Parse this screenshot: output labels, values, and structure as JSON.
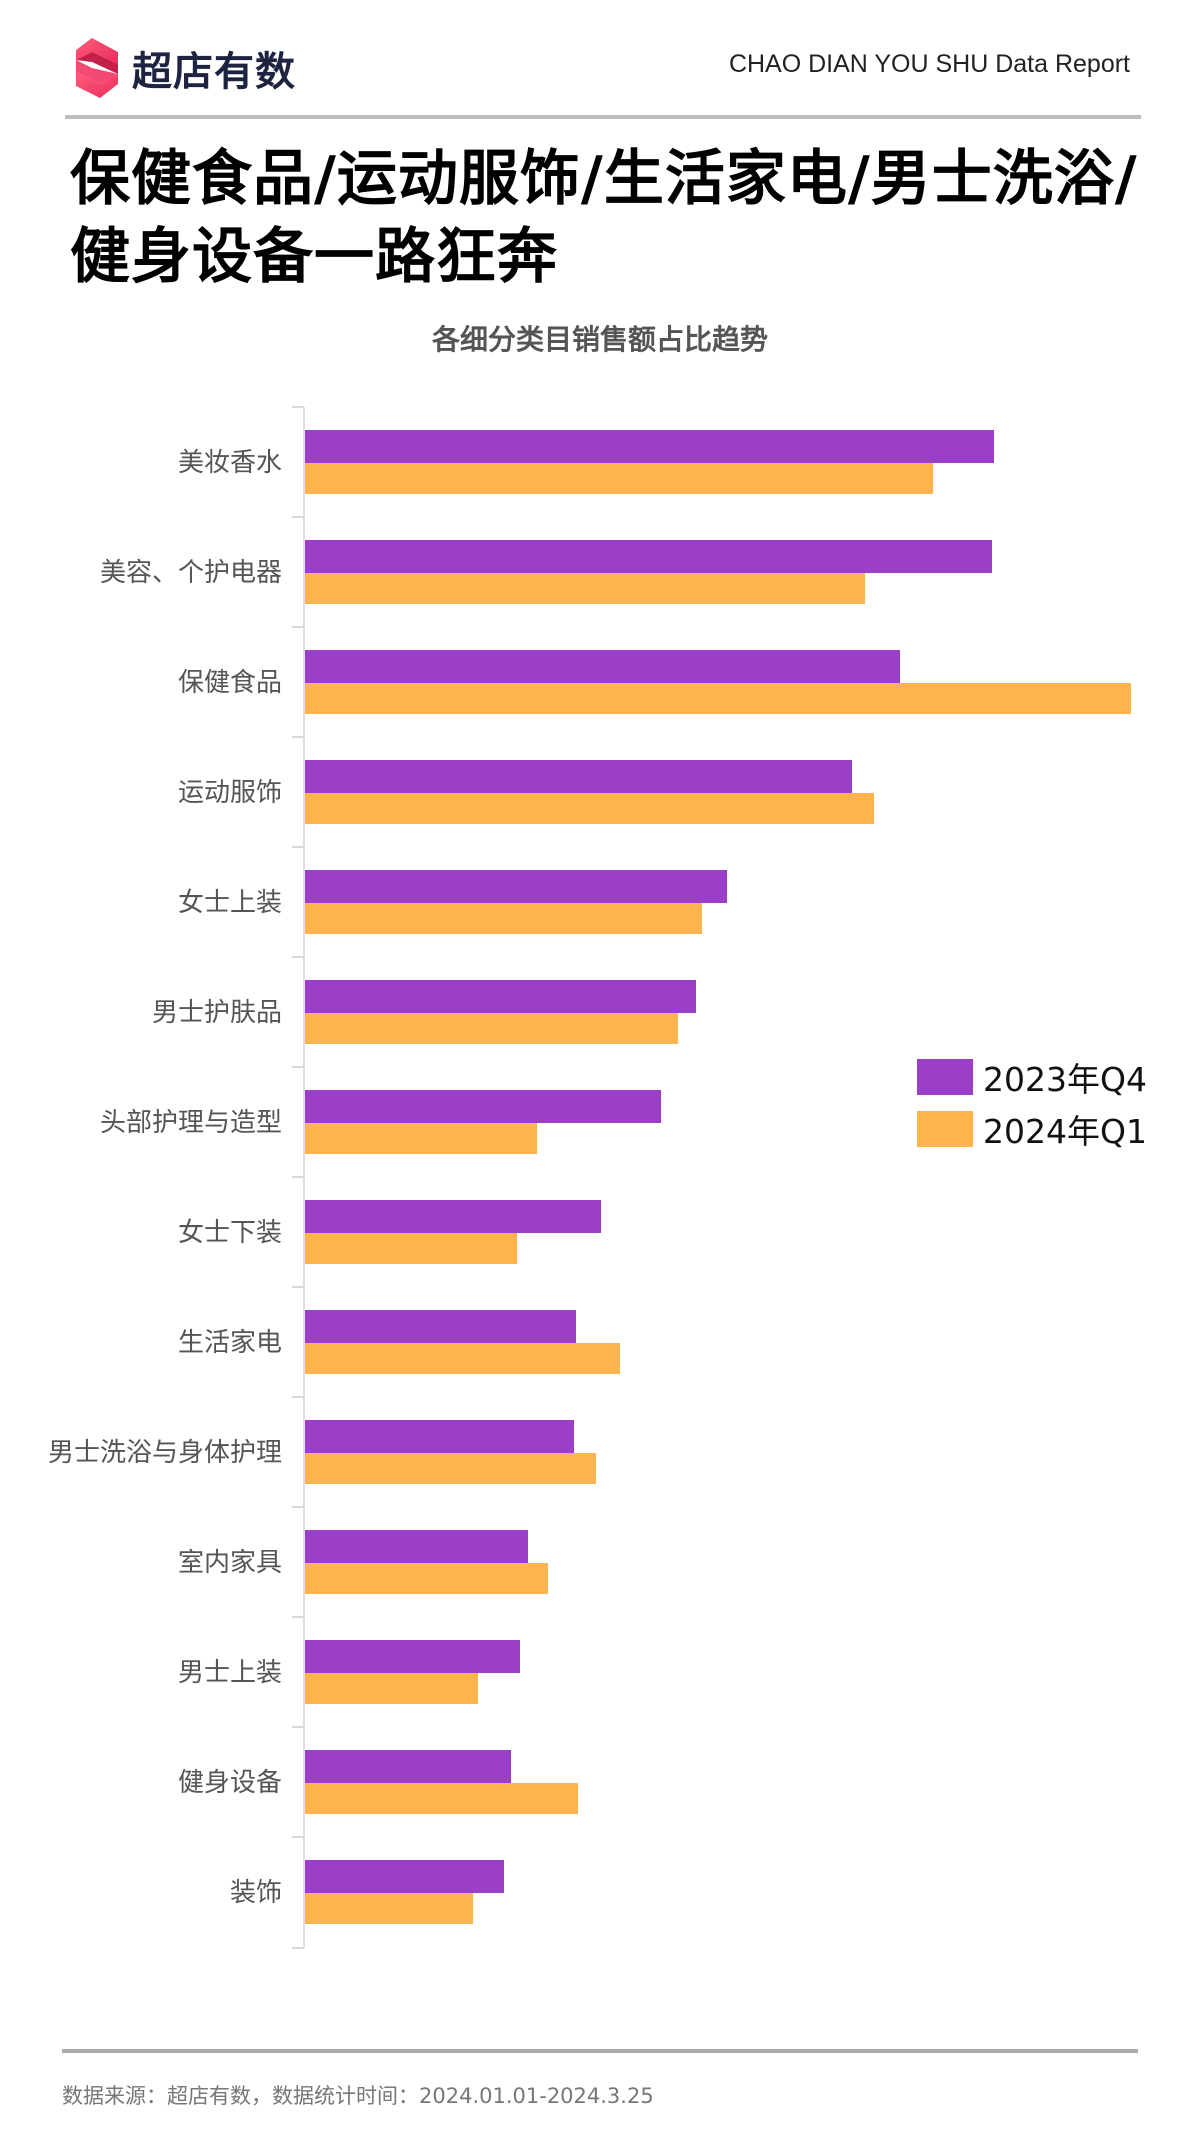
{
  "header": {
    "brand_name": "超店有数",
    "report_label": "CHAO DIAN YOU SHU Data Report",
    "logo_icon": "brand-s-logo-icon"
  },
  "page_title": "保健食品/运动服饰/生活家电/男士洗浴/健身设备一路狂奔",
  "footer": {
    "note": "数据来源：超店有数，数据统计时间：2024.01.01-2024.3.25"
  },
  "colors": {
    "series_2023Q4": "#9b3fc8",
    "series_2024Q1": "#fdb44f",
    "logo_pink": "#f0456e",
    "divider": "#bdbdbd"
  },
  "chart_data": {
    "type": "bar",
    "orientation": "horizontal",
    "title": "各细分类目销售额占比趋势",
    "xlabel": "",
    "ylabel": "",
    "value_note": "Relative bar lengths, normalized so the longest bar (保健食品 2024年Q1) = 100; the chart has no value axis labels",
    "categories": [
      "美妆香水",
      "美容、个护电器",
      "保健食品",
      "运动服饰",
      "女士上装",
      "男士护肤品",
      "头部护理与造型",
      "女士下装",
      "生活家电",
      "男士洗浴与身体护理",
      "室内家具",
      "男士上装",
      "健身设备",
      "装饰"
    ],
    "series": [
      {
        "name": "2023年Q4",
        "color": "#9b3fc8",
        "values": [
          83.4,
          83.2,
          72.0,
          66.2,
          51.1,
          47.3,
          43.1,
          35.8,
          32.8,
          32.6,
          27.0,
          26.0,
          24.9,
          24.1
        ]
      },
      {
        "name": "2024年Q1",
        "color": "#fdb44f",
        "values": [
          76.0,
          67.8,
          100.0,
          68.9,
          48.1,
          45.2,
          28.1,
          25.7,
          38.1,
          35.2,
          29.4,
          20.9,
          33.1,
          20.3
        ]
      }
    ],
    "xlim": [
      0,
      100
    ],
    "grid": false,
    "legend_position": "right-middle"
  }
}
